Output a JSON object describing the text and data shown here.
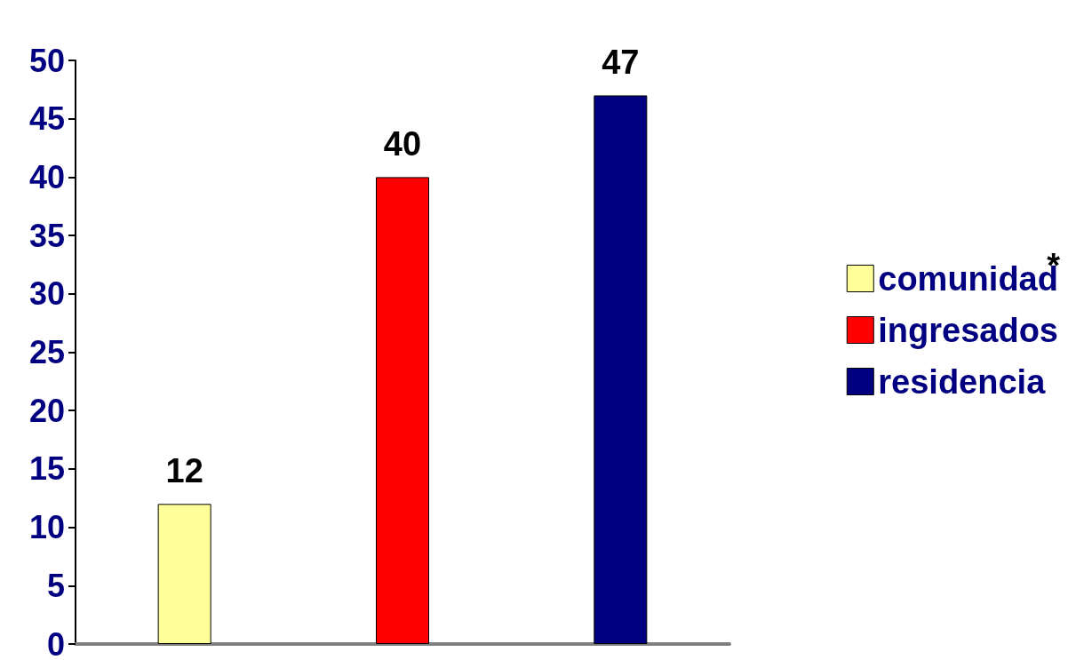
{
  "chart_data": {
    "type": "bar",
    "categories": [
      null,
      null,
      null
    ],
    "series": [
      {
        "name": "comunidad",
        "color": "#ffff99",
        "values": [
          12,
          null,
          null
        ]
      },
      {
        "name": "ingresados",
        "color": "#ff0000",
        "values": [
          null,
          40,
          null
        ]
      },
      {
        "name": "residencia",
        "color": "#000080",
        "values": [
          null,
          null,
          47
        ]
      }
    ],
    "ylim": [
      0,
      50
    ],
    "yticks": [
      0,
      5,
      10,
      15,
      20,
      25,
      30,
      35,
      40,
      45,
      50
    ],
    "grid": false,
    "legend": "right",
    "data_labels": true,
    "annotations": [
      "*"
    ]
  }
}
